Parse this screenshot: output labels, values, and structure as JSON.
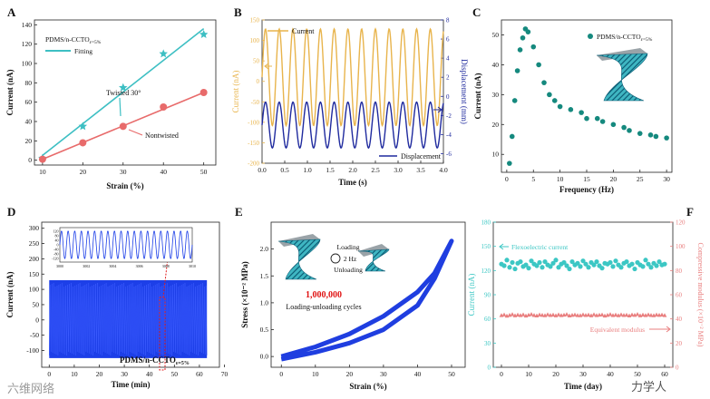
{
  "chart_data": [
    {
      "panel": "A",
      "type": "scatter",
      "legend_title": "PDMS/n-CCTO",
      "legend_title_sub": "ε=5%",
      "legend_entry": "Fitting",
      "xlabel": "Strain (%)",
      "ylabel": "Current (nA)",
      "xlim": [
        8,
        53
      ],
      "ylim": [
        -5,
        145
      ],
      "xticks": [
        10,
        20,
        30,
        40,
        50
      ],
      "yticks": [
        0,
        20,
        40,
        60,
        80,
        100,
        120,
        140
      ],
      "series": [
        {
          "name": "Twisted  30°",
          "marker": "star",
          "color": "#3dbfc3",
          "x": [
            10,
            20,
            30,
            40,
            50
          ],
          "y": [
            2,
            35,
            75,
            110,
            130
          ],
          "fit": [
            [
              10,
              5
            ],
            [
              50,
              136
            ]
          ]
        },
        {
          "name": "Nontwisted",
          "marker": "circle",
          "color": "#e86b6b",
          "x": [
            10,
            20,
            30,
            40,
            50
          ],
          "y": [
            1,
            18,
            35,
            55,
            70
          ],
          "fit": [
            [
              10,
              1
            ],
            [
              50,
              70
            ]
          ]
        }
      ]
    },
    {
      "panel": "B",
      "type": "line",
      "xlabel": "Time (s)",
      "ylabel": "Current (nA)",
      "y2label": "Displacement (mm)",
      "xlim": [
        0,
        4
      ],
      "ylim": [
        -200,
        150
      ],
      "y2lim": [
        -7,
        8
      ],
      "xticks": [
        0.0,
        0.5,
        1.0,
        1.5,
        2.0,
        2.5,
        3.0,
        3.5,
        4.0
      ],
      "yticks": [
        150,
        100,
        50,
        0,
        -50,
        -100,
        -150,
        -200
      ],
      "y2ticks": [
        8,
        6,
        4,
        2,
        0,
        -2,
        -4,
        -6
      ],
      "series": [
        {
          "name": "Current",
          "color": "#e8b44c",
          "axis": "left",
          "frequency_hz": 3.3,
          "center": 10,
          "amplitude": 118
        },
        {
          "name": "Displacement",
          "color": "#1f2a9e",
          "axis": "right",
          "frequency_hz": 3.3,
          "center": -3.0,
          "amplitude": 2.4
        }
      ]
    },
    {
      "panel": "C",
      "type": "scatter",
      "legend": "PDMS/n-CCTO",
      "legend_sub": "ε=5%",
      "xlabel": "Frequency (Hz)",
      "ylabel": "Current (nA)",
      "xlim": [
        -1,
        31
      ],
      "ylim": [
        4,
        55
      ],
      "xticks": [
        0,
        5,
        10,
        15,
        20,
        25,
        30
      ],
      "yticks": [
        10,
        20,
        30,
        40,
        50
      ],
      "color": "#15897e",
      "x": [
        0.5,
        1,
        1.5,
        2,
        2.5,
        3,
        3.5,
        4,
        5,
        6,
        7,
        8,
        9,
        10,
        12,
        14,
        15,
        17,
        18,
        20,
        22,
        23,
        25,
        27,
        28,
        30
      ],
      "y": [
        7,
        16,
        28,
        38,
        45,
        49,
        52,
        51,
        46,
        40,
        34,
        30,
        28,
        26,
        25,
        24,
        22,
        22,
        21,
        20,
        19,
        18,
        17,
        16.5,
        16,
        15.5
      ]
    },
    {
      "panel": "D",
      "type": "line",
      "label": "PDMS/n-CCTO",
      "label_sub": "ε=5%",
      "xlabel": "Time (min)",
      "ylabel": "Current (nA)",
      "xlim": [
        -3,
        68
      ],
      "ylim": [
        -155,
        320
      ],
      "xticks": [
        0,
        10,
        20,
        30,
        40,
        50,
        60,
        70
      ],
      "yticks": [
        -100,
        -50,
        0,
        50,
        100,
        150,
        200,
        250,
        300
      ],
      "color": "#1d3fe8",
      "band": {
        "x": [
          0,
          63
        ],
        "y": [
          -125,
          130
        ]
      },
      "inset": {
        "xlim": [
          3000,
          3010
        ],
        "ylim": [
          -150,
          150
        ],
        "xticks": [
          3000,
          3002,
          3004,
          3006,
          3008,
          3010
        ],
        "yticks": [
          120,
          80,
          40,
          0,
          -40,
          -80,
          -120
        ],
        "frequency_hz": 2.0,
        "amplitude": 120
      }
    },
    {
      "panel": "E",
      "type": "line",
      "xlabel": "Strain (%)",
      "ylabel": "Stress (×10⁻² MPa)",
      "xlim": [
        -3,
        54
      ],
      "ylim": [
        -0.2,
        2.5
      ],
      "xticks": [
        0,
        10,
        20,
        30,
        40,
        50
      ],
      "yticks": [
        0.0,
        0.5,
        1.0,
        1.5,
        2.0
      ],
      "color": "#1f3ee0",
      "loading": {
        "x": [
          0,
          10,
          20,
          30,
          40,
          45,
          50
        ],
        "y": [
          0,
          0.18,
          0.42,
          0.75,
          1.2,
          1.55,
          2.15
        ]
      },
      "unloading": {
        "x": [
          50,
          45,
          40,
          30,
          20,
          10,
          0
        ],
        "y": [
          2.15,
          1.45,
          0.95,
          0.5,
          0.25,
          0.08,
          -0.05
        ]
      },
      "annotations": {
        "loading": "Loading",
        "hz": "2 Hz",
        "unloading": "Unloading",
        "cycles_count": "1,000,000",
        "cycles_label": "Loading-unloading cycles"
      }
    },
    {
      "panel": "F",
      "type": "scatter",
      "xlabel": "Time (day)",
      "ylabel": "Current (nA)",
      "y2label": "Compressive modulus (×10⁻² MPa)",
      "xlim": [
        -3,
        63
      ],
      "ylim": [
        0,
        180
      ],
      "y2lim": [
        0,
        120
      ],
      "xticks": [
        0,
        10,
        20,
        30,
        40,
        50,
        60
      ],
      "yticks": [
        0,
        30,
        60,
        90,
        120,
        150,
        180
      ],
      "y2ticks": [
        0,
        20,
        40,
        60,
        80,
        100,
        120
      ],
      "series": [
        {
          "name": "Flexoelectric current",
          "axis": "left",
          "marker": "circle",
          "color": "#3cc7c4",
          "x": [
            0,
            1,
            2,
            3,
            4,
            5,
            6,
            7,
            8,
            9,
            10,
            11,
            12,
            13,
            14,
            15,
            16,
            17,
            18,
            19,
            20,
            21,
            22,
            23,
            24,
            25,
            26,
            27,
            28,
            29,
            30,
            31,
            32,
            33,
            34,
            35,
            36,
            37,
            38,
            39,
            40,
            41,
            42,
            43,
            44,
            45,
            46,
            47,
            48,
            49,
            50,
            51,
            52,
            53,
            54,
            55,
            56,
            57,
            58,
            59,
            60
          ],
          "y": [
            128,
            126,
            133,
            124,
            130,
            122,
            129,
            131,
            125,
            127,
            123,
            132,
            128,
            126,
            130,
            124,
            131,
            127,
            125,
            129,
            133,
            124,
            128,
            130,
            126,
            122,
            131,
            127,
            129,
            125,
            132,
            128,
            124,
            130,
            127,
            131,
            126,
            123,
            129,
            128,
            130,
            125,
            132,
            127,
            124,
            129,
            131,
            126,
            128,
            122,
            130,
            127,
            125,
            133,
            128,
            124,
            129,
            126,
            131,
            127,
            128
          ]
        },
        {
          "name": "Equivalent modulus",
          "axis": "right",
          "marker": "triangle",
          "color": "#e97f7f",
          "x": [
            0,
            1,
            2,
            3,
            4,
            5,
            6,
            7,
            8,
            9,
            10,
            11,
            12,
            13,
            14,
            15,
            16,
            17,
            18,
            19,
            20,
            21,
            22,
            23,
            24,
            25,
            26,
            27,
            28,
            29,
            30,
            31,
            32,
            33,
            34,
            35,
            36,
            37,
            38,
            39,
            40,
            41,
            42,
            43,
            44,
            45,
            46,
            47,
            48,
            49,
            50,
            51,
            52,
            53,
            54,
            55,
            56,
            57,
            58,
            59,
            60
          ],
          "y": [
            43,
            43.5,
            42.5,
            43.2,
            43.8,
            42.8,
            43.4,
            43,
            43.6,
            42.6,
            43.3,
            43.9,
            43.1,
            42.7,
            43.5,
            43.2,
            42.9,
            43.7,
            43.1,
            43.4,
            42.8,
            43.6,
            43,
            43.3,
            43.8,
            42.7,
            43.2,
            43.5,
            43,
            42.9,
            43.6,
            43.1,
            43.4,
            42.8,
            43.7,
            43,
            43.3,
            43.5,
            42.6,
            43.2,
            43.8,
            43,
            43.4,
            42.9,
            43.6,
            43.1,
            43.3,
            42.7,
            43.5,
            43.2,
            43.9,
            42.8,
            43.4,
            43,
            43.6,
            43.1,
            42.9,
            43.5,
            43.2,
            43.4,
            43
          ]
        }
      ]
    }
  ],
  "watermarks": [
    "六维网络",
    "力学人"
  ]
}
